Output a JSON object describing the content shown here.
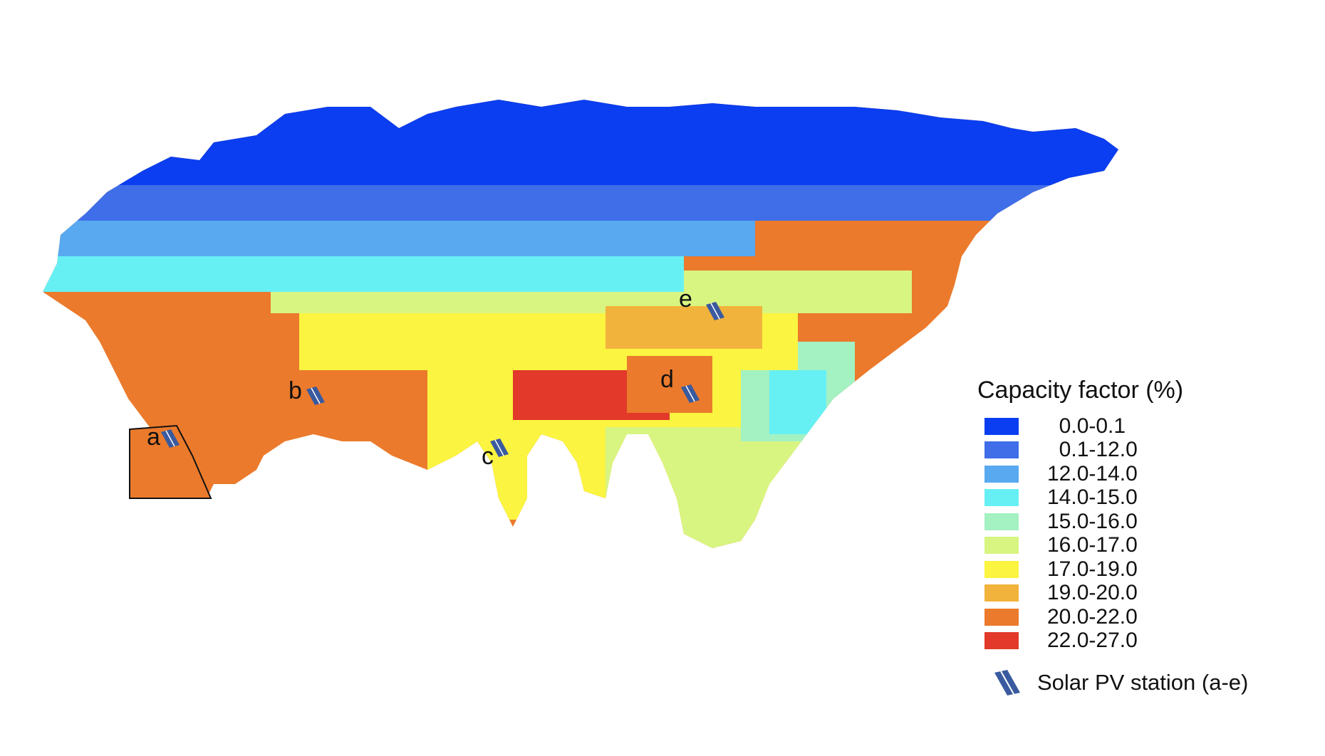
{
  "legend": {
    "title": "Capacity factor (%)",
    "classes": [
      {
        "label": "  0.0-0.1",
        "color": "#0a3ef0"
      },
      {
        "label": "  0.1-12.0",
        "color": "#3f6ee8"
      },
      {
        "label": "12.0-14.0",
        "color": "#58a9f0"
      },
      {
        "label": "14.0-15.0",
        "color": "#66f0f4"
      },
      {
        "label": "15.0-16.0",
        "color": "#a4f1c2"
      },
      {
        "label": "16.0-17.0",
        "color": "#d8f581"
      },
      {
        "label": "17.0-19.0",
        "color": "#fbf440"
      },
      {
        "label": "19.0-20.0",
        "color": "#f2b33c"
      },
      {
        "label": "20.0-22.0",
        "color": "#eb7a2c"
      },
      {
        "label": "22.0-27.0",
        "color": "#e2392a"
      }
    ],
    "station_label": "Solar PV station (a-e)",
    "station_color": "#3a5aa0"
  },
  "stations": [
    {
      "letter": "a"
    },
    {
      "letter": "b"
    },
    {
      "letter": "c"
    },
    {
      "letter": "d"
    },
    {
      "letter": "e"
    }
  ]
}
